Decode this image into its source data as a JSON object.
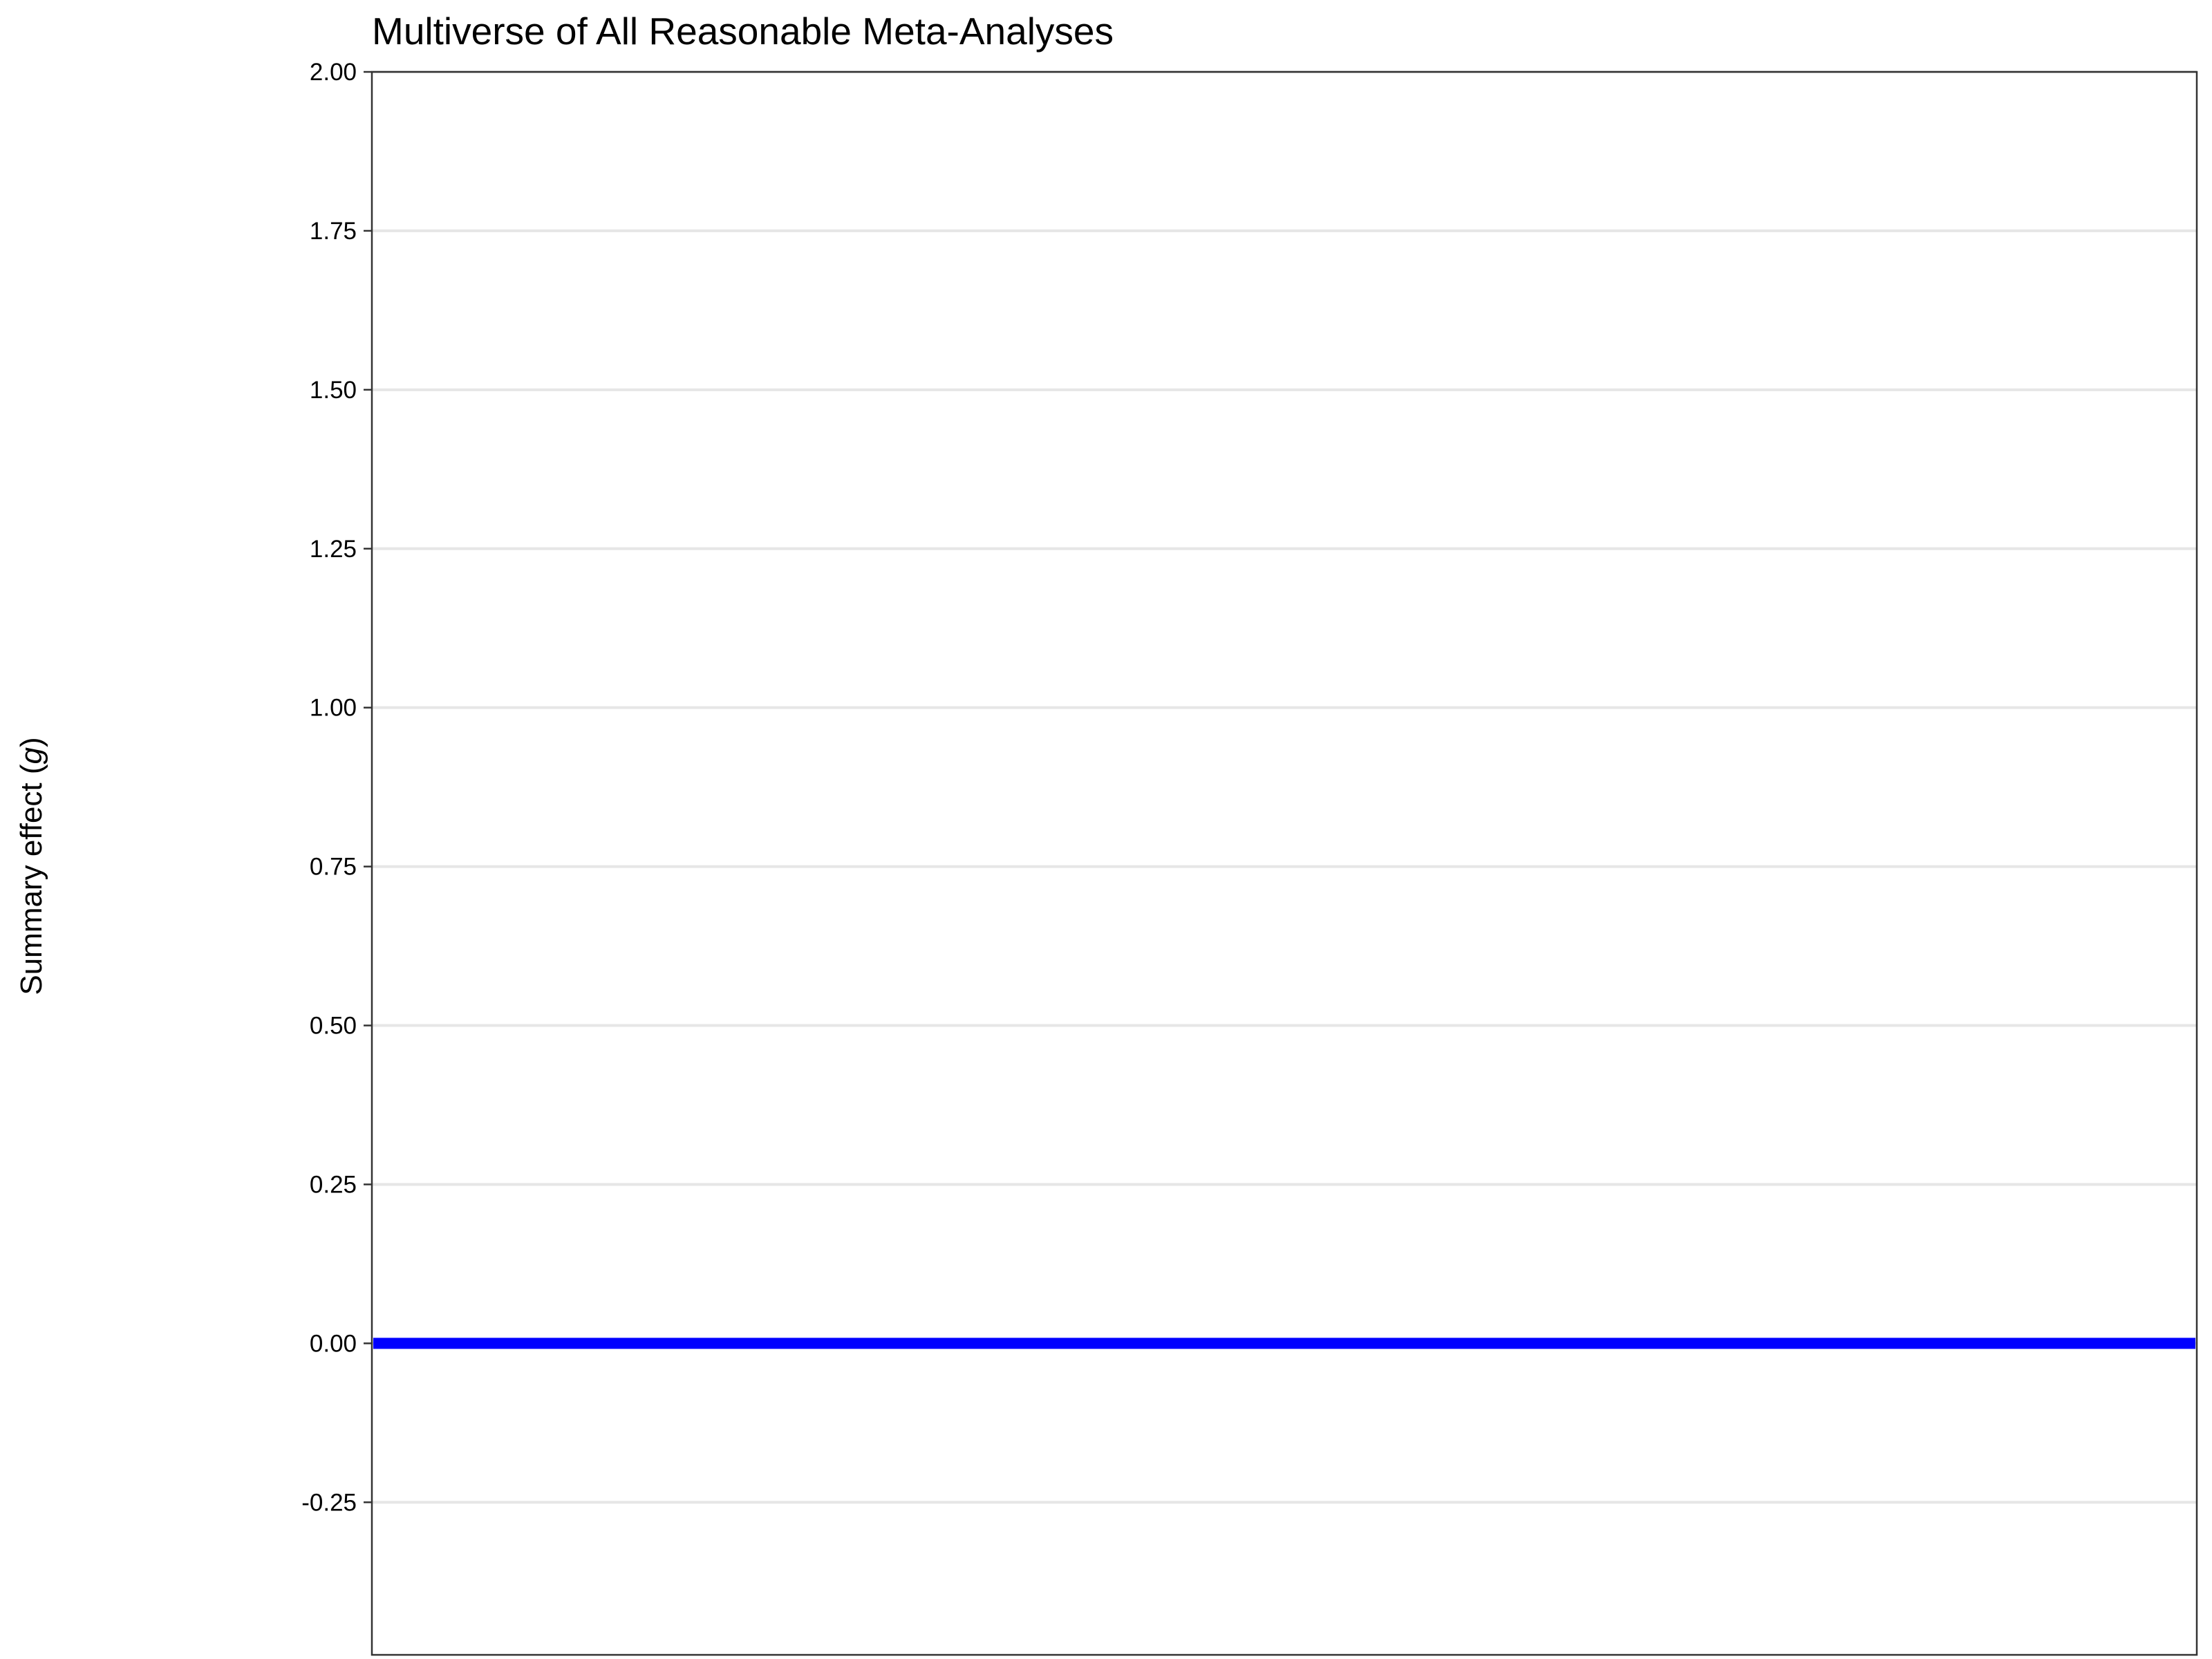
{
  "chart_data": {
    "type": "line",
    "title": "Multiverse of All Reasonable Meta-Analyses",
    "ylabel": {
      "prefix": "Summary effect (",
      "var": "g",
      "suffix": ")"
    },
    "xlabel": "",
    "ylim": [
      -0.49,
      2.0
    ],
    "yticks": [
      {
        "value": 2.0,
        "label": "2.00"
      },
      {
        "value": 1.75,
        "label": "1.75"
      },
      {
        "value": 1.5,
        "label": "1.50"
      },
      {
        "value": 1.25,
        "label": "1.25"
      },
      {
        "value": 1.0,
        "label": "1.00"
      },
      {
        "value": 0.75,
        "label": "0.75"
      },
      {
        "value": 0.5,
        "label": "0.50"
      },
      {
        "value": 0.25,
        "label": "0.25"
      },
      {
        "value": 0.0,
        "label": "0.00"
      },
      {
        "value": -0.25,
        "label": "-0.25"
      }
    ],
    "grid": "horizontal",
    "reference_line": {
      "y": 0.0,
      "color": "#0000ff"
    },
    "colors": {
      "grid": "#e6e6e6",
      "frame": "#333333",
      "reference": "#0000ff"
    }
  }
}
